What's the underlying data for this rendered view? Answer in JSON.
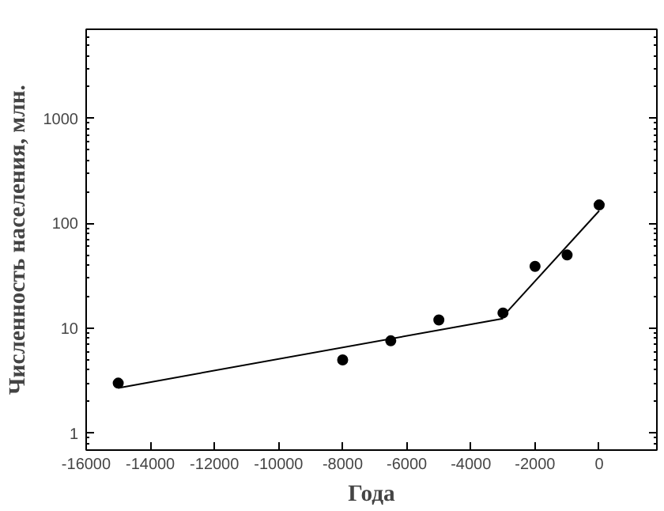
{
  "chart_data": {
    "type": "scatter",
    "xlabel": "Года",
    "ylabel": "Численность населения, млн.",
    "xlim": [
      -16000,
      1800
    ],
    "xticks": [
      -16000,
      -14000,
      -12000,
      -10000,
      -8000,
      -6000,
      -4000,
      -2000,
      0
    ],
    "ylim": [
      0.69,
      7100
    ],
    "yticks": [
      1,
      10,
      100,
      1000
    ],
    "log": "y",
    "grid": false,
    "series": [
      {
        "marker": "circle",
        "color": "#000000",
        "x": [
          -15000,
          -8000,
          -6500,
          -5000,
          -3000,
          -2000,
          -1000,
          0
        ],
        "values": [
          3,
          5,
          7.6,
          12,
          14,
          39,
          50,
          150
        ]
      },
      {
        "type": "line",
        "color": "#000000",
        "x": [
          -15000,
          -3000
        ],
        "values": [
          2.7,
          12.4
        ],
        "marker": "none"
      },
      {
        "type": "line",
        "color": "#000000",
        "x": [
          -3000,
          0
        ],
        "values": [
          13,
          132
        ],
        "marker": "none"
      }
    ]
  }
}
